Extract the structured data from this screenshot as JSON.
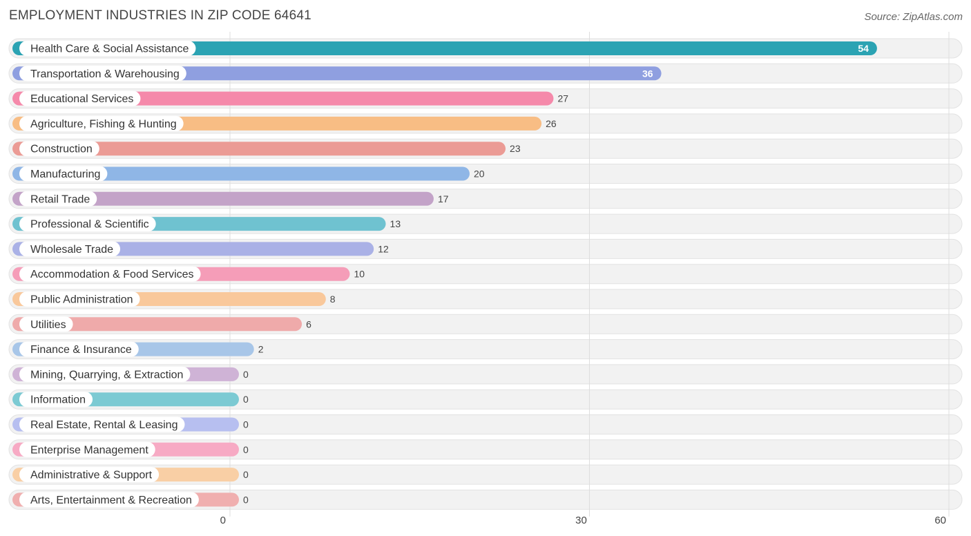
{
  "header": {
    "title": "EMPLOYMENT INDUSTRIES IN ZIP CODE 64641",
    "source": "Source: ZipAtlas.com"
  },
  "chart_data": {
    "type": "bar",
    "orientation": "horizontal",
    "title": "EMPLOYMENT INDUSTRIES IN ZIP CODE 64641",
    "xlabel": "",
    "ylabel": "",
    "xlim": [
      0,
      60
    ],
    "ticks": [
      0,
      30,
      60
    ],
    "grid": true,
    "categories": [
      "Health Care & Social Assistance",
      "Transportation & Warehousing",
      "Educational Services",
      "Agriculture, Fishing & Hunting",
      "Construction",
      "Manufacturing",
      "Retail Trade",
      "Professional & Scientific",
      "Wholesale Trade",
      "Accommodation & Food Services",
      "Public Administration",
      "Utilities",
      "Finance & Insurance",
      "Mining, Quarrying, & Extraction",
      "Information",
      "Real Estate, Rental & Leasing",
      "Enterprise Management",
      "Administrative & Support",
      "Arts, Entertainment & Recreation"
    ],
    "values": [
      54,
      36,
      27,
      26,
      23,
      20,
      17,
      13,
      12,
      10,
      8,
      6,
      2,
      0,
      0,
      0,
      0,
      0,
      0
    ],
    "colors": [
      "#2ba3b3",
      "#8f9fe0",
      "#f589aa",
      "#f8bd84",
      "#eb9b95",
      "#8fb6e6",
      "#c3a3c8",
      "#6fc2d0",
      "#aab1e6",
      "#f59db8",
      "#f9c89b",
      "#efaaaa",
      "#a8c6e8",
      "#cfb3d6",
      "#7ccad3",
      "#b7bff0",
      "#f7aac4",
      "#f9cfa5",
      "#f0afaf"
    ]
  }
}
